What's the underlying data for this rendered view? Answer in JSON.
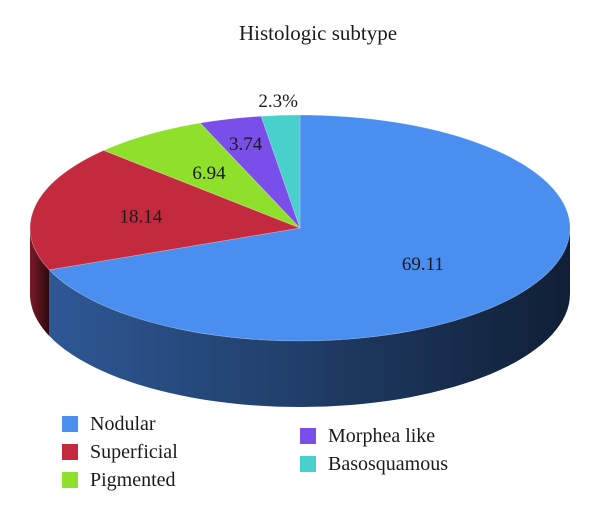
{
  "chart_data": {
    "type": "pie",
    "title": "Histologic subtype",
    "categories": [
      "Nodular",
      "Superficial",
      "Pigmented",
      "Morphea like",
      "Basosquamous"
    ],
    "values": [
      69.11,
      18.14,
      6.94,
      3.74,
      2.3
    ],
    "data_labels": [
      "69.11",
      "18.14",
      "6.94",
      "3.74",
      "2.3%"
    ],
    "colors": [
      "#4a8ef0",
      "#c42a3e",
      "#8fe02a",
      "#7a4ee8",
      "#48d0cc"
    ],
    "style": "3d",
    "legend_placement": "bottom",
    "legend": [
      {
        "label": "Nodular",
        "color": "#4a8ef0"
      },
      {
        "label": "Superficial",
        "color": "#c42a3e"
      },
      {
        "label": "Pigmented",
        "color": "#8fe02a"
      },
      {
        "label": "Morphea like",
        "color": "#7a4ee8"
      },
      {
        "label": "Basosquamous",
        "color": "#48d0cc"
      }
    ]
  }
}
